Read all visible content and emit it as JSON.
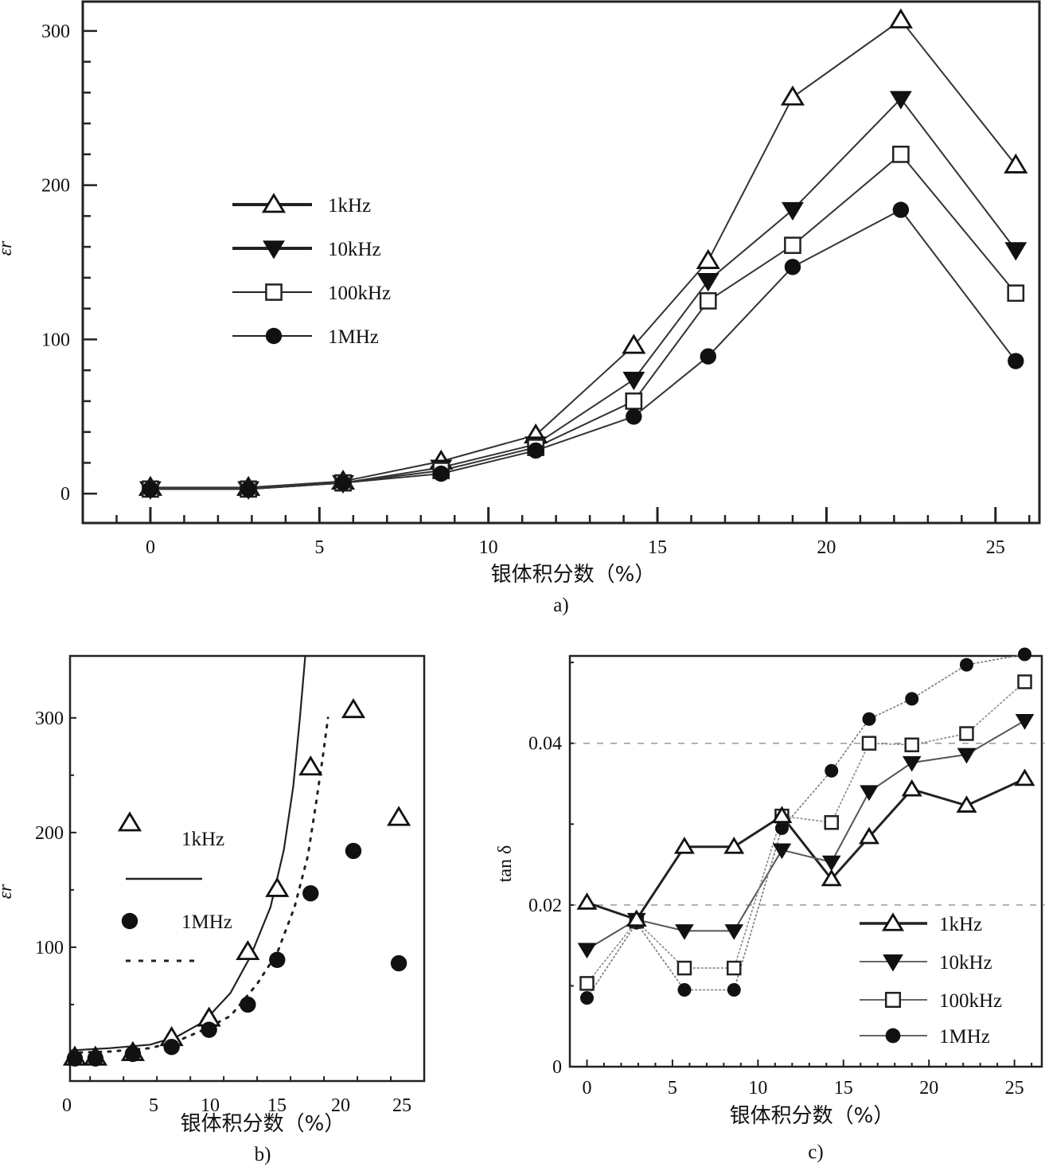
{
  "chart_data": [
    {
      "id": "a",
      "type": "line",
      "panel_label": "a)",
      "xlabel": "银体积分数（%）",
      "ylabel": "εr",
      "xlim": [
        -2,
        26.3
      ],
      "ylim": [
        -19,
        319
      ],
      "xticks": [
        0,
        5,
        10,
        15,
        20,
        25
      ],
      "yticks": [
        0,
        100,
        200,
        300
      ],
      "grid": false,
      "legend": "center-left",
      "x": [
        0,
        2.9,
        5.7,
        8.6,
        11.4,
        14.3,
        16.5,
        19.0,
        22.2,
        25.6
      ],
      "series": [
        {
          "name": "1kHz",
          "marker": "triangle-open",
          "values": [
            4,
            4,
            8,
            21,
            38,
            96,
            151,
            257,
            307,
            213
          ]
        },
        {
          "name": "10kHz",
          "marker": "triangle-down-filled",
          "values": [
            3,
            3,
            7,
            17,
            32,
            74,
            138,
            184,
            256,
            158
          ]
        },
        {
          "name": "100kHz",
          "marker": "square-open",
          "values": [
            3,
            3,
            7,
            15,
            30,
            60,
            125,
            161,
            220,
            130
          ]
        },
        {
          "name": "1MHz",
          "marker": "circle-filled",
          "values": [
            3,
            3,
            7,
            13,
            28,
            50,
            89,
            147,
            184,
            86
          ]
        }
      ]
    },
    {
      "id": "b",
      "type": "scatter",
      "panel_label": "b)",
      "xlabel": "银体积分数（%）",
      "ylabel": "εr",
      "xlim": [
        1,
        27.5
      ],
      "ylim": [
        -16,
        354
      ],
      "xticks": [
        0,
        5,
        10,
        15,
        20,
        25
      ],
      "yticks": [
        100,
        200,
        300
      ],
      "grid": false,
      "legend": "center-left",
      "x": [
        0,
        2.9,
        5.7,
        8.6,
        11.4,
        14.3,
        16.5,
        19.0,
        22.2,
        25.6
      ],
      "series": [
        {
          "name": "1kHz",
          "marker": "triangle-open",
          "values": [
            4,
            4,
            8,
            21,
            38,
            96,
            151,
            257,
            307,
            213
          ]
        },
        {
          "name": "1MHz",
          "marker": "circle-filled",
          "values": [
            3,
            3,
            7,
            13,
            28,
            50,
            89,
            147,
            184,
            86
          ]
        }
      ],
      "fits": [
        {
          "name": "1kHz fit",
          "style": "solid",
          "x": [
            1,
            4,
            7,
            9,
            11,
            13,
            14.5,
            16,
            17,
            17.7,
            18.2,
            18.6
          ],
          "values": [
            10,
            12,
            15,
            22,
            35,
            60,
            92,
            135,
            185,
            240,
            300,
            354
          ]
        },
        {
          "name": "1MHz fit",
          "style": "dotted",
          "x": [
            1,
            4,
            7,
            9,
            11,
            13,
            15,
            16.5,
            17.8,
            18.8,
            19.4,
            19.9,
            20.3
          ],
          "values": [
            8,
            9,
            12,
            18,
            28,
            40,
            68,
            95,
            135,
            180,
            225,
            265,
            300
          ]
        }
      ]
    },
    {
      "id": "c",
      "type": "line",
      "panel_label": "c)",
      "xlabel": "银体积分数（%）",
      "ylabel": "tan δ",
      "xlim": [
        -1,
        26.6
      ],
      "ylim": [
        0,
        0.0508
      ],
      "xticks": [
        0,
        5,
        10,
        15,
        20,
        25
      ],
      "yticks": [
        0,
        0.02,
        0.04
      ],
      "ytick_labels": [
        "0",
        "0.02",
        "0.04"
      ],
      "grid": "dashed at 0.02 and 0.04",
      "legend": "bottom-right",
      "x": [
        0,
        2.9,
        5.7,
        8.6,
        11.4,
        14.3,
        16.5,
        19.0,
        22.2,
        25.6
      ],
      "series": [
        {
          "name": "1kHz",
          "marker": "triangle-open",
          "values": [
            0.0203,
            0.0182,
            0.0272,
            0.0272,
            0.031,
            0.0232,
            0.0284,
            0.0343,
            0.0323,
            0.0356
          ]
        },
        {
          "name": "10kHz",
          "marker": "triangle-down-filled",
          "values": [
            0.0145,
            0.0182,
            0.0168,
            0.0168,
            0.0268,
            0.0253,
            0.034,
            0.0376,
            0.0386,
            0.0428
          ]
        },
        {
          "name": "100kHz",
          "marker": "square-open",
          "values": [
            0.0103,
            0.018,
            0.0122,
            0.0122,
            0.031,
            0.0302,
            0.04,
            0.0398,
            0.0412,
            0.0476
          ]
        },
        {
          "name": "1MHz",
          "marker": "circle-filled",
          "values": [
            0.0085,
            0.0178,
            0.0095,
            0.0095,
            0.0295,
            0.0366,
            0.043,
            0.0455,
            0.0497,
            0.051
          ]
        }
      ]
    }
  ]
}
